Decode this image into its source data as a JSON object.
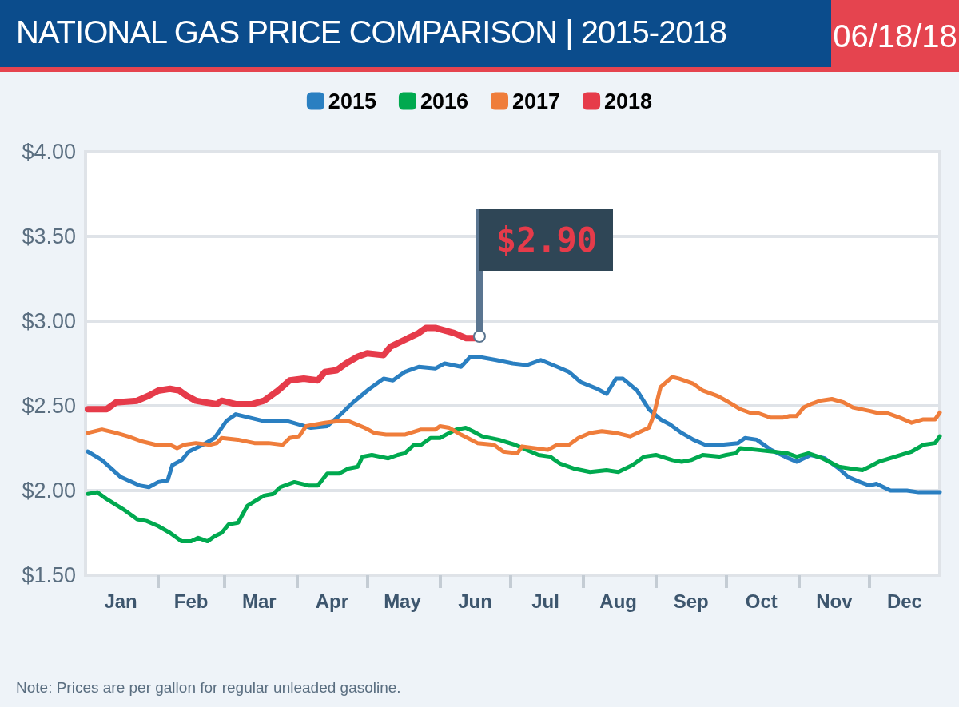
{
  "chart_data": {
    "type": "line",
    "title": "NATIONAL GAS PRICE COMPARISON | 2015-2018",
    "subtitle": "06/18/18",
    "annotations": [
      {
        "text": "$2.90",
        "x": "--06-18",
        "y": 2.9
      },
      "Note: Prices are per gallon for regular unleaded gasoline."
    ],
    "xlim": [
      "--01-01",
      "--12-31"
    ],
    "xticks": [
      {
        "value": "--01-16",
        "label": "Jan"
      },
      {
        "value": "--02-01",
        "label": null
      },
      {
        "value": "--02-15",
        "label": "Feb"
      },
      {
        "value": "--03-01",
        "label": null
      },
      {
        "value": "--03-16",
        "label": "Mar"
      },
      {
        "value": "--04-01",
        "label": null
      },
      {
        "value": "--04-16",
        "label": "Apr"
      },
      {
        "value": "--05-01",
        "label": null
      },
      {
        "value": "--05-16",
        "label": "May"
      },
      {
        "value": "--06-01",
        "label": null
      },
      {
        "value": "--06-16",
        "label": "Jun"
      },
      {
        "value": "--07-01",
        "label": null
      },
      {
        "value": "--07-16",
        "label": "Jul"
      },
      {
        "value": "--08-01",
        "label": null
      },
      {
        "value": "--08-16",
        "label": "Aug"
      },
      {
        "value": "--09-01",
        "label": null
      },
      {
        "value": "--09-16",
        "label": "Sep"
      },
      {
        "value": "--10-01",
        "label": null
      },
      {
        "value": "--10-16",
        "label": "Oct"
      },
      {
        "value": "--11-01",
        "label": null
      },
      {
        "value": "--11-16",
        "label": "Nov"
      },
      {
        "value": "--12-01",
        "label": null
      },
      {
        "value": "--12-16",
        "label": "Dec"
      }
    ],
    "ylim": [
      1.5,
      4
    ],
    "yticks": [
      {
        "value": 1.5,
        "label": "$1.50"
      },
      {
        "value": 2,
        "label": "$2.00"
      },
      {
        "value": 2.5,
        "label": "$2.50"
      },
      {
        "value": 3,
        "label": "$3.00"
      },
      {
        "value": 3.5,
        "label": "$3.50"
      },
      {
        "value": 4,
        "label": "$4.00"
      }
    ],
    "grid": "y",
    "legend": "top",
    "marker": "none",
    "line_style": "solid",
    "series": [
      {
        "name": "2015",
        "color": "#2a7fc1",
        "x": [
          "--01-02",
          "--01-08",
          "--01-16",
          "--01-24",
          "--01-28",
          "--02-01",
          "--02-05",
          "--02-07",
          "--02-11",
          "--02-14",
          "--02-20",
          "--02-25",
          "--03-02",
          "--03-06",
          "--03-12",
          "--03-18",
          "--03-28",
          "--04-07",
          "--04-14",
          "--04-19",
          "--04-25",
          "--05-02",
          "--05-08",
          "--05-12",
          "--05-17",
          "--05-23",
          "--05-30",
          "--06-03",
          "--06-10",
          "--06-14",
          "--06-17",
          "--06-25",
          "--07-02",
          "--07-08",
          "--07-14",
          "--07-21",
          "--07-26",
          "--07-31",
          "--08-07",
          "--08-11",
          "--08-15",
          "--08-18",
          "--08-24",
          "--08-29",
          "--09-03",
          "--09-07",
          "--09-12",
          "--09-17",
          "--09-22",
          "--09-29",
          "--10-06",
          "--10-09",
          "--10-14",
          "--10-20",
          "--10-26",
          "--10-31",
          "--11-06",
          "--11-12",
          "--11-18",
          "--11-22",
          "--11-27",
          "--12-01",
          "--12-04",
          "--12-10",
          "--12-17",
          "--12-22",
          "--12-31"
        ],
        "values": [
          2.23,
          2.18,
          2.08,
          2.03,
          2.02,
          2.05,
          2.06,
          2.15,
          2.18,
          2.23,
          2.27,
          2.31,
          2.41,
          2.45,
          2.43,
          2.41,
          2.41,
          2.37,
          2.38,
          2.44,
          2.52,
          2.6,
          2.66,
          2.65,
          2.7,
          2.73,
          2.72,
          2.75,
          2.73,
          2.79,
          2.79,
          2.77,
          2.75,
          2.74,
          2.77,
          2.73,
          2.7,
          2.64,
          2.6,
          2.57,
          2.66,
          2.66,
          2.59,
          2.48,
          2.42,
          2.39,
          2.34,
          2.3,
          2.27,
          2.27,
          2.28,
          2.31,
          2.3,
          2.24,
          2.2,
          2.17,
          2.21,
          2.19,
          2.13,
          2.08,
          2.05,
          2.03,
          2.04,
          2.0,
          2.0,
          1.99,
          1.99
        ]
      },
      {
        "name": "2016",
        "color": "#00a94f",
        "x": [
          "--01-02",
          "--01-06",
          "--01-10",
          "--01-17",
          "--01-23",
          "--01-27",
          "--02-01",
          "--02-06",
          "--02-11",
          "--02-15",
          "--02-18",
          "--02-22",
          "--02-25",
          "--02-28",
          "--03-03",
          "--03-07",
          "--03-11",
          "--03-18",
          "--03-22",
          "--03-25",
          "--03-31",
          "--04-06",
          "--04-10",
          "--04-14",
          "--04-19",
          "--04-23",
          "--04-27",
          "--04-29",
          "--05-03",
          "--05-10",
          "--05-14",
          "--05-17",
          "--05-21",
          "--05-24",
          "--05-28",
          "--06-01",
          "--06-05",
          "--06-08",
          "--06-12",
          "--06-15",
          "--06-19",
          "--06-26",
          "--07-03",
          "--07-08",
          "--07-13",
          "--07-18",
          "--07-22",
          "--07-28",
          "--08-04",
          "--08-11",
          "--08-16",
          "--08-22",
          "--08-27",
          "--09-01",
          "--09-08",
          "--09-12",
          "--09-16",
          "--09-21",
          "--09-28",
          "--10-01",
          "--10-05",
          "--10-07",
          "--10-14",
          "--10-21",
          "--10-27",
          "--10-31",
          "--11-05",
          "--11-11",
          "--11-18",
          "--11-23",
          "--11-28",
          "--12-01",
          "--12-05",
          "--12-12",
          "--12-19",
          "--12-24",
          "--12-29",
          "--12-31"
        ],
        "values": [
          1.98,
          1.99,
          1.95,
          1.89,
          1.83,
          1.82,
          1.79,
          1.75,
          1.7,
          1.7,
          1.72,
          1.7,
          1.73,
          1.75,
          1.8,
          1.81,
          1.91,
          1.97,
          1.98,
          2.02,
          2.05,
          2.03,
          2.03,
          2.1,
          2.1,
          2.13,
          2.14,
          2.2,
          2.21,
          2.19,
          2.21,
          2.22,
          2.27,
          2.27,
          2.31,
          2.31,
          2.34,
          2.36,
          2.37,
          2.35,
          2.32,
          2.3,
          2.27,
          2.24,
          2.21,
          2.2,
          2.16,
          2.13,
          2.11,
          2.12,
          2.11,
          2.15,
          2.2,
          2.21,
          2.18,
          2.17,
          2.18,
          2.21,
          2.2,
          2.21,
          2.22,
          2.25,
          2.24,
          2.23,
          2.22,
          2.2,
          2.22,
          2.19,
          2.14,
          2.13,
          2.12,
          2.14,
          2.17,
          2.2,
          2.23,
          2.27,
          2.28,
          2.32
        ]
      },
      {
        "name": "2017",
        "color": "#ef7d3b",
        "x": [
          "--01-02",
          "--01-08",
          "--01-14",
          "--01-19",
          "--01-25",
          "--01-31",
          "--02-06",
          "--02-09",
          "--02-12",
          "--02-17",
          "--02-23",
          "--02-26",
          "--02-28",
          "--03-07",
          "--03-14",
          "--03-20",
          "--03-26",
          "--03-29",
          "--04-02",
          "--04-05",
          "--04-13",
          "--04-19",
          "--04-23",
          "--04-30",
          "--05-04",
          "--05-09",
          "--05-17",
          "--05-24",
          "--05-30",
          "--06-01",
          "--06-05",
          "--06-10",
          "--06-17",
          "--06-24",
          "--06-28",
          "--07-04",
          "--07-06",
          "--07-17",
          "--07-21",
          "--07-26",
          "--07-30",
          "--08-04",
          "--08-09",
          "--08-15",
          "--08-21",
          "--08-29",
          "--08-31",
          "--09-03",
          "--09-08",
          "--09-11",
          "--09-17",
          "--09-21",
          "--09-27",
          "--10-01",
          "--10-07",
          "--10-11",
          "--10-14",
          "--10-20",
          "--10-25",
          "--10-28",
          "--10-31",
          "--11-03",
          "--11-06",
          "--11-10",
          "--11-15",
          "--11-20",
          "--11-24",
          "--12-01",
          "--12-04",
          "--12-08",
          "--12-14",
          "--12-19",
          "--12-24",
          "--12-29",
          "--12-31"
        ],
        "values": [
          2.34,
          2.36,
          2.34,
          2.32,
          2.29,
          2.27,
          2.27,
          2.25,
          2.27,
          2.28,
          2.27,
          2.28,
          2.31,
          2.3,
          2.28,
          2.28,
          2.27,
          2.31,
          2.32,
          2.38,
          2.4,
          2.41,
          2.41,
          2.37,
          2.34,
          2.33,
          2.33,
          2.36,
          2.36,
          2.38,
          2.37,
          2.33,
          2.28,
          2.27,
          2.23,
          2.22,
          2.26,
          2.24,
          2.27,
          2.27,
          2.31,
          2.34,
          2.35,
          2.34,
          2.32,
          2.37,
          2.44,
          2.61,
          2.67,
          2.66,
          2.63,
          2.59,
          2.56,
          2.53,
          2.48,
          2.46,
          2.46,
          2.43,
          2.43,
          2.44,
          2.44,
          2.49,
          2.51,
          2.53,
          2.54,
          2.52,
          2.49,
          2.47,
          2.46,
          2.46,
          2.43,
          2.4,
          2.42,
          2.42,
          2.46
        ]
      },
      {
        "name": "2018",
        "color": "#e63b4a",
        "x": [
          "--01-02",
          "--01-10",
          "--01-14",
          "--01-23",
          "--01-28",
          "--02-01",
          "--02-06",
          "--02-10",
          "--02-13",
          "--02-17",
          "--02-21",
          "--02-26",
          "--02-28",
          "--03-06",
          "--03-13",
          "--03-18",
          "--03-24",
          "--03-29",
          "--04-04",
          "--04-10",
          "--04-13",
          "--04-18",
          "--04-22",
          "--04-27",
          "--05-01",
          "--05-08",
          "--05-11",
          "--05-20",
          "--05-23",
          "--05-26",
          "--05-30",
          "--06-07",
          "--06-12",
          "--06-18"
        ],
        "values": [
          2.48,
          2.48,
          2.52,
          2.53,
          2.56,
          2.59,
          2.6,
          2.59,
          2.56,
          2.53,
          2.52,
          2.51,
          2.53,
          2.51,
          2.51,
          2.53,
          2.59,
          2.65,
          2.66,
          2.65,
          2.7,
          2.71,
          2.75,
          2.79,
          2.81,
          2.8,
          2.85,
          2.91,
          2.93,
          2.96,
          2.96,
          2.93,
          2.9,
          2.9
        ]
      }
    ]
  }
}
